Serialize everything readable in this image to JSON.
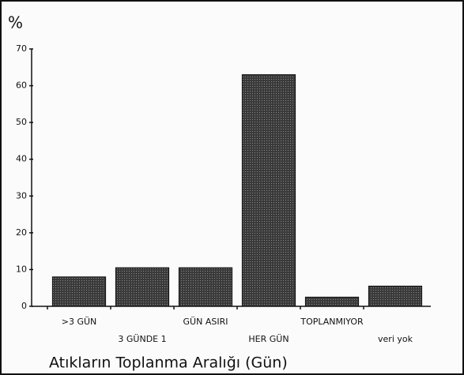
{
  "chart_data": {
    "type": "bar",
    "y_label": "%",
    "x_label": "Atıkların Toplanma Aralığı (Gün)",
    "categories": [
      ">3 GÜN",
      "3 GÜNDE 1",
      "GÜN ASIRI",
      "HER GÜN",
      "TOPLANMIYOR",
      "veri yok"
    ],
    "values": [
      8,
      10.5,
      10.5,
      63,
      2.5,
      5.5
    ],
    "color": "#3a3a3a",
    "ylim": [
      0,
      70
    ],
    "yticks": [
      0,
      10,
      20,
      30,
      40,
      50,
      60,
      70
    ],
    "grid": false
  }
}
